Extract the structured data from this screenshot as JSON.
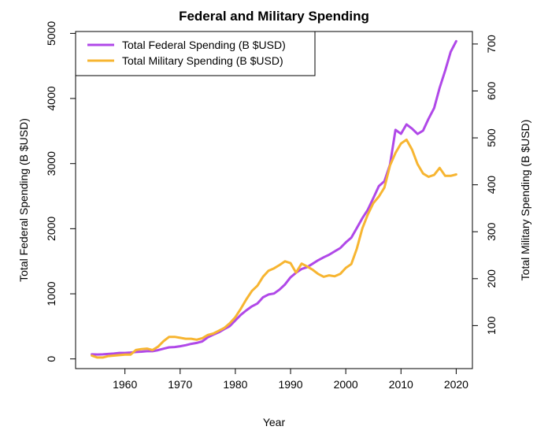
{
  "chart_data": {
    "type": "line",
    "title": "Federal and Military Spending",
    "xlabel": "Year",
    "ylabel": "Total Federal Spending (B $USD)",
    "y2label": "Total Military Spending (B $USD)",
    "xlim": [
      1954,
      2020
    ],
    "ylim": [
      0,
      4880
    ],
    "y2lim": [
      29,
      706
    ],
    "x_ticks": [
      1960,
      1970,
      1980,
      1990,
      2000,
      2010,
      2020
    ],
    "y_ticks": [
      0,
      1000,
      2000,
      3000,
      4000,
      5000
    ],
    "y2_ticks": [
      100,
      200,
      300,
      400,
      500,
      600,
      700
    ],
    "grid": false,
    "legend": {
      "position": "top-left"
    },
    "series": [
      {
        "name": "Total Federal Spending (B $USD)",
        "axis": "left",
        "color": "#b048e8",
        "x": [
          1954,
          1955,
          1956,
          1957,
          1958,
          1959,
          1960,
          1961,
          1962,
          1963,
          1964,
          1965,
          1966,
          1967,
          1968,
          1969,
          1970,
          1971,
          1972,
          1973,
          1974,
          1975,
          1976,
          1977,
          1978,
          1979,
          1980,
          1981,
          1982,
          1983,
          1984,
          1985,
          1986,
          1987,
          1988,
          1989,
          1990,
          1991,
          1992,
          1993,
          1994,
          1995,
          1996,
          1997,
          1998,
          1999,
          2000,
          2001,
          2002,
          2003,
          2004,
          2005,
          2006,
          2007,
          2008,
          2009,
          2010,
          2011,
          2012,
          2013,
          2014,
          2015,
          2016,
          2017,
          2018,
          2019,
          2020
        ],
        "values": [
          70,
          68,
          70,
          76,
          82,
          92,
          92,
          98,
          106,
          111,
          118,
          118,
          134,
          157,
          178,
          183,
          195,
          210,
          231,
          246,
          269,
          332,
          372,
          409,
          459,
          504,
          591,
          678,
          746,
          808,
          852,
          946,
          990,
          1004,
          1064,
          1144,
          1253,
          1324,
          1382,
          1409,
          1462,
          1516,
          1560,
          1601,
          1653,
          1702,
          1789,
          1863,
          2011,
          2160,
          2293,
          2472,
          2655,
          2729,
          2983,
          3518,
          3457,
          3603,
          3537,
          3455,
          3506,
          3688,
          3853,
          4165,
          4427,
          4717,
          4880
        ]
      },
      {
        "name": "Total Military Spending (B $USD)",
        "axis": "right",
        "color": "#f7b531",
        "x": [
          1954,
          1955,
          1956,
          1957,
          1958,
          1959,
          1960,
          1961,
          1962,
          1963,
          1964,
          1965,
          1966,
          1967,
          1968,
          1969,
          1970,
          1971,
          1972,
          1973,
          1974,
          1975,
          1976,
          1977,
          1978,
          1979,
          1980,
          1981,
          1982,
          1983,
          1984,
          1985,
          1986,
          1987,
          1988,
          1989,
          1990,
          1991,
          1992,
          1993,
          1994,
          1995,
          1996,
          1997,
          1998,
          1999,
          2000,
          2001,
          2002,
          2003,
          2004,
          2005,
          2006,
          2007,
          2008,
          2009,
          2010,
          2011,
          2012,
          2013,
          2014,
          2015,
          2016,
          2017,
          2018,
          2019,
          2020
        ],
        "values": [
          36,
          32,
          32,
          35,
          36,
          37,
          38,
          38,
          48,
          50,
          51,
          48,
          55,
          67,
          76,
          76,
          74,
          72,
          72,
          70,
          73,
          80,
          83,
          89,
          95,
          105,
          118,
          136,
          156,
          174,
          185,
          204,
          217,
          222,
          229,
          237,
          233,
          213,
          232,
          226,
          219,
          210,
          204,
          207,
          205,
          210,
          223,
          231,
          264,
          307,
          337,
          361,
          375,
          394,
          441,
          468,
          488,
          496,
          475,
          444,
          424,
          417,
          421,
          436,
          419,
          419,
          422
        ]
      }
    ]
  }
}
